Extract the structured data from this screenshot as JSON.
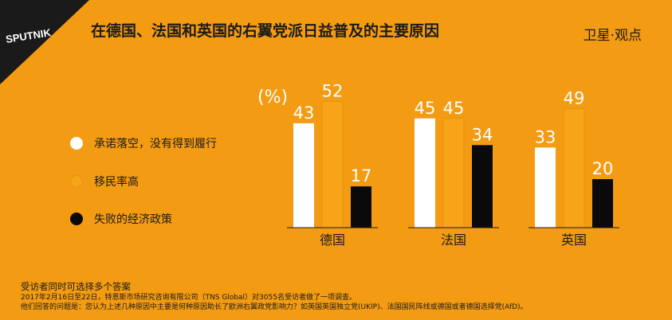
{
  "header": {
    "logo_text": "SPUTNIK",
    "title": "在德国、法国和英国的右翼党派日益普及的主要原因",
    "source": "卫星·观点"
  },
  "chart_data": {
    "type": "bar",
    "unit_label": "(%)",
    "categories": [
      "德国",
      "法国",
      "英国"
    ],
    "series": [
      {
        "name": "承诺落空，没有得到履行",
        "values": [
          43,
          45,
          33
        ]
      },
      {
        "name": "移民率高",
        "values": [
          52,
          45,
          49
        ]
      },
      {
        "name": "失败的经济政策",
        "values": [
          17,
          34,
          20
        ]
      }
    ],
    "legend_position": "left",
    "grid": false
  },
  "colors": {
    "background": "#F39B12",
    "series": [
      "#FFFFFF",
      "#F7A419",
      "#0A0A0A"
    ],
    "text_dark": "#1b1b1b",
    "label_light": "#FFFFFF",
    "axis": "#1b1b1b"
  },
  "footer": {
    "note1": "受访者同时可选择多个答案",
    "note2": "2017年2月16日至22日，特恩斯市场研究咨询有限公司（TNS Global）对3055名受访者做了一项调查。",
    "note3": "他们回答的问题是：您认为上述几种原因中主要是何种原因助长了欧洲右翼政党影响力？如英国英国独立党(UKIP)、法国国民阵线或德国或者德国选择党(AfD)。"
  }
}
